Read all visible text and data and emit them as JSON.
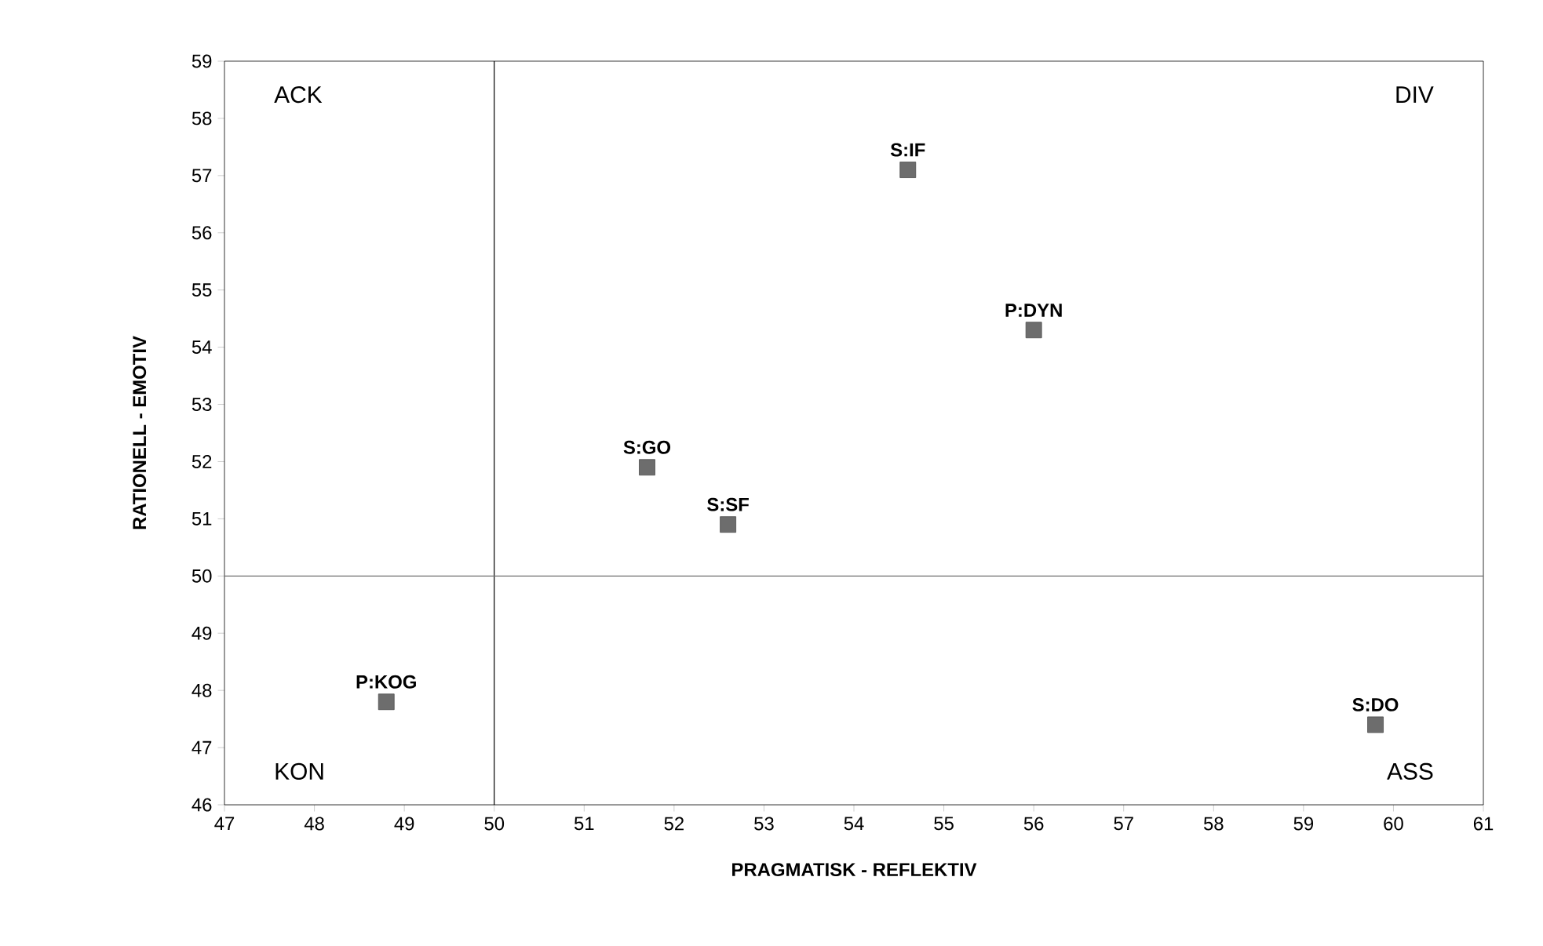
{
  "chart_data": {
    "type": "scatter",
    "xlabel": "PRAGMATISK   -   REFLEKTIV",
    "ylabel": "RATIONELL   -   EMOTIV",
    "x": [
      54.6,
      56.0,
      51.7,
      52.6,
      48.8,
      59.8
    ],
    "values": [
      57.1,
      54.3,
      51.9,
      50.9,
      47.8,
      47.4
    ],
    "color": "#6d6d6d",
    "marker": "square",
    "xlim": [
      47,
      61
    ],
    "xticks": [
      47,
      48,
      49,
      50,
      51,
      52,
      53,
      54,
      55,
      56,
      57,
      58,
      59,
      60,
      61
    ],
    "ylim": [
      46,
      59
    ],
    "yticks": [
      46,
      47,
      48,
      49,
      50,
      51,
      52,
      53,
      54,
      55,
      56,
      57,
      58,
      59
    ],
    "grid": false,
    "ref_lines": [
      {
        "axis": "x",
        "value": 50,
        "color": "#000000"
      },
      {
        "axis": "y",
        "value": 50,
        "color": "#707070"
      }
    ],
    "annotations": [
      {
        "text": "S:IF",
        "x": 54.6,
        "y": 57.1
      },
      {
        "text": "P:DYN",
        "x": 56.0,
        "y": 54.3
      },
      {
        "text": "S:GO",
        "x": 51.7,
        "y": 51.9
      },
      {
        "text": "S:SF",
        "x": 52.6,
        "y": 50.9
      },
      {
        "text": "P:KOG",
        "x": 48.8,
        "y": 47.8
      },
      {
        "text": "S:DO",
        "x": 59.8,
        "y": 47.4
      },
      "ACK",
      "DIV",
      "KON",
      "ASS"
    ]
  }
}
